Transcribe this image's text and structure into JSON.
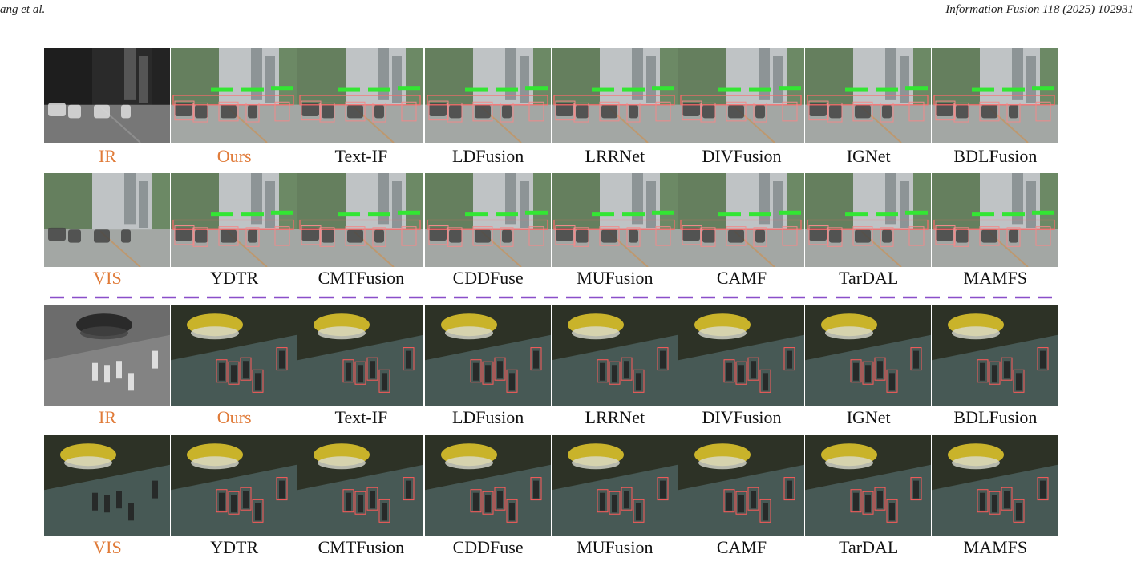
{
  "header": {
    "left": "ang et al.",
    "right": "Information Fusion 118 (2025) 102931"
  },
  "figure": {
    "groups": [
      {
        "rows": [
          {
            "labels": [
              "IR",
              "Ours",
              "Text-IF",
              "LDFusion",
              "LRRNet",
              "DIVFusion",
              "IGNet",
              "BDLFusion"
            ]
          },
          {
            "labels": [
              "VIS",
              "YDTR",
              "CMTFusion",
              "CDDFuse",
              "MUFusion",
              "CAMF",
              "TarDAL",
              "MAMFS"
            ]
          }
        ]
      },
      {
        "rows": [
          {
            "labels": [
              "IR",
              "Ours",
              "Text-IF",
              "LDFusion",
              "LRRNet",
              "DIVFusion",
              "IGNet",
              "BDLFusion"
            ]
          },
          {
            "labels": [
              "VIS",
              "YDTR",
              "CMTFusion",
              "CDDFuse",
              "MUFusion",
              "CAMF",
              "TarDAL",
              "MAMFS"
            ]
          }
        ]
      }
    ]
  }
}
